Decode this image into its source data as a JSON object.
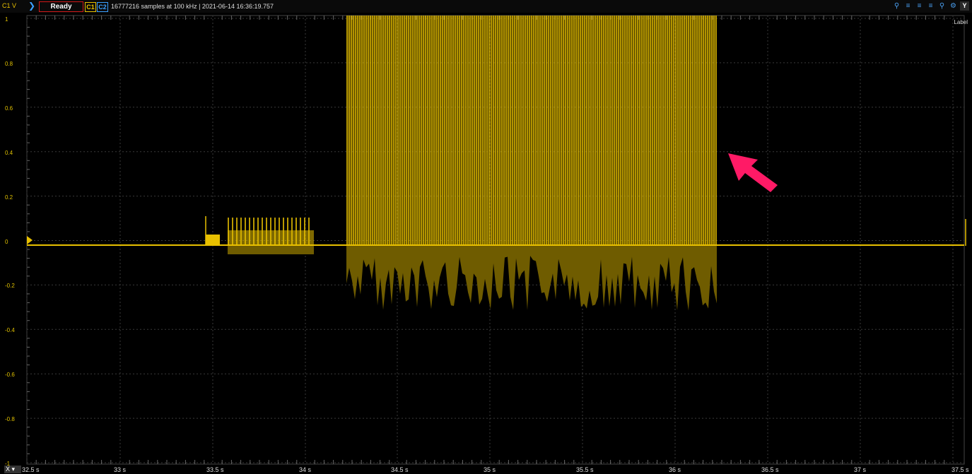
{
  "toolbar": {
    "channel_axis_label": "C1 V",
    "status": "Ready",
    "channel1": "C1",
    "channel2": "C2",
    "acquisition_info": "16777216 samples at 100 kHz | 2021-06-14 16:36:19.757",
    "y_button": "Y",
    "x_button": "X"
  },
  "plot": {
    "label_text": "Label",
    "y_ticks": [
      "1",
      "0.8",
      "0.6",
      "0.4",
      "0.2",
      "0",
      "-0.2",
      "-0.4",
      "-0.6",
      "-0.8",
      "-1"
    ],
    "x_ticks": [
      "32.5 s",
      "33 s",
      "33.5 s",
      "34 s",
      "34.5 s",
      "35 s",
      "35.5 s",
      "36 s",
      "36.5 s",
      "37 s",
      "37.5 s"
    ],
    "trace_color": "#e8c000",
    "envelope_color": "#6f5c00",
    "annotation_arrow_color": "#ff1a66"
  }
}
